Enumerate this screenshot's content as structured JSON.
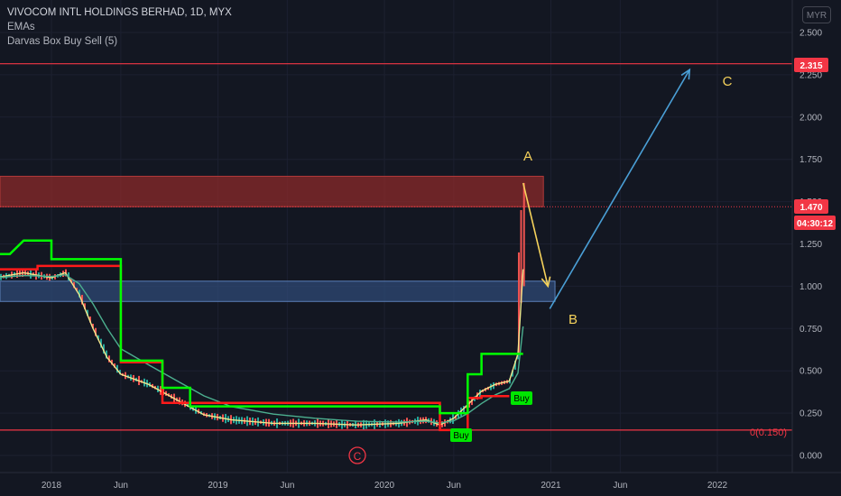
{
  "legend": {
    "title": "VIVOCOM INTL HOLDINGS BERHAD, 1D, MYX",
    "indicator_1": "EMAs",
    "indicator_2": "Darvas Box Buy Sell (5)"
  },
  "currency_badge": "MYR",
  "colors": {
    "background": "#131722",
    "axis_text": "#b2b5be",
    "candle_up": "#26a69a",
    "candle_down": "#ef5350",
    "darvas_top": "#00ff00",
    "darvas_bottom": "#ff1a1a",
    "resistance_line": "#f23645",
    "resistance_zone": "#8b2a2a",
    "support_zone": "#2f4a75",
    "wave_A_B": "#f5d25b",
    "wave_B_C": "#4a9fd6",
    "price_tag": "#f23645",
    "buy_label": "#00e600"
  },
  "price_tags": {
    "target": "2.315",
    "last_price": "1.470",
    "countdown": "04:30:12"
  },
  "annotations": {
    "wave_a": "A",
    "wave_b": "B",
    "wave_c": "C",
    "circle_c": "C",
    "fib_label": "0(0.150)",
    "buy_1": "Buy",
    "buy_2": "Buy"
  },
  "chart_data": {
    "type": "line",
    "title": "VIVOCOM INTL HOLDINGS BERHAD, 1D, MYX",
    "ylim": [
      -0.05,
      2.65
    ],
    "y_ticks": [
      "2.500",
      "2.250",
      "2.000",
      "1.750",
      "1.500",
      "1.250",
      "1.000",
      "0.750",
      "0.500",
      "0.250",
      "0.000"
    ],
    "y_tick_values": [
      2.5,
      2.25,
      2.0,
      1.75,
      1.5,
      1.25,
      1.0,
      0.75,
      0.5,
      0.25,
      0.0
    ],
    "x_range": [
      "2017-06",
      "2022-06"
    ],
    "x_ticks": [
      {
        "label": "2018",
        "date": "2018-01"
      },
      {
        "label": "Jun",
        "date": "2018-06"
      },
      {
        "label": "2019",
        "date": "2019-01"
      },
      {
        "label": "Jun",
        "date": "2019-06"
      },
      {
        "label": "2020",
        "date": "2020-01"
      },
      {
        "label": "Jun",
        "date": "2020-06"
      },
      {
        "label": "2021",
        "date": "2021-01"
      },
      {
        "label": "Jun",
        "date": "2021-06"
      },
      {
        "label": "2022",
        "date": "2022-01"
      }
    ],
    "series": [
      {
        "name": "EMAs",
        "dates": [
          "2017-06",
          "2017-09",
          "2017-11",
          "2018-01",
          "2018-02",
          "2018-03",
          "2018-04",
          "2018-05",
          "2018-06",
          "2018-08",
          "2018-10",
          "2018-12",
          "2019-02",
          "2019-05",
          "2019-08",
          "2019-11",
          "2020-02",
          "2020-04",
          "2020-05",
          "2020-06",
          "2020-07",
          "2020-08",
          "2020-09",
          "2020-10",
          "2020-10-20",
          "2020-11"
        ],
        "values": [
          1.05,
          1.05,
          1.08,
          1.05,
          1.08,
          0.95,
          0.75,
          0.58,
          0.48,
          0.42,
          0.33,
          0.24,
          0.21,
          0.19,
          0.19,
          0.18,
          0.19,
          0.21,
          0.18,
          0.22,
          0.3,
          0.38,
          0.42,
          0.44,
          0.6,
          1.1
        ]
      }
    ],
    "darvas_top": {
      "dates": [
        "2017-06",
        "2017-10",
        "2017-11",
        "2018-01",
        "2018-01",
        "2018-06",
        "2018-06",
        "2018-09",
        "2018-09",
        "2018-11",
        "2018-11",
        "2020-05",
        "2020-05",
        "2020-07",
        "2020-07",
        "2020-08",
        "2020-08",
        "2020-11"
      ],
      "values": [
        1.19,
        1.19,
        1.27,
        1.27,
        1.16,
        1.16,
        0.56,
        0.56,
        0.4,
        0.4,
        0.29,
        0.29,
        0.25,
        0.25,
        0.48,
        0.48,
        0.6,
        0.6
      ]
    },
    "darvas_bottom": {
      "dates": [
        "2017-06",
        "2017-12",
        "2017-12",
        "2018-06",
        "2018-06",
        "2018-09",
        "2018-09",
        "2018-11",
        "2020-05",
        "2020-05",
        "2020-07",
        "2020-07",
        "2020-08",
        "2020-08",
        "2020-10"
      ],
      "values": [
        1.1,
        1.1,
        1.12,
        1.12,
        0.55,
        0.55,
        0.31,
        0.31,
        0.31,
        0.15,
        0.15,
        0.34,
        0.34,
        0.35,
        0.35
      ]
    },
    "zones": [
      {
        "name": "resistance",
        "from_date": "2017-06",
        "to_date": "2020-12-15",
        "low": 1.47,
        "high": 1.65
      },
      {
        "name": "support",
        "from_date": "2017-06",
        "to_date": "2021-01-10",
        "low": 0.91,
        "high": 1.03
      }
    ],
    "horizontal_levels": [
      {
        "label": "2.315",
        "value": 2.315
      },
      {
        "label": "1.470",
        "value": 1.47
      },
      {
        "label": "0(0.150)",
        "value": 0.15
      }
    ],
    "waves": [
      {
        "label": "A",
        "date": "2020-11",
        "value": 1.61
      },
      {
        "label": "B",
        "date": "2020-12-25",
        "value": 1.0
      },
      {
        "label": "C",
        "date": "2021-11",
        "value": 2.28
      }
    ],
    "signals": [
      {
        "label": "Buy",
        "date": "2020-06-15",
        "value": 0.12
      },
      {
        "label": "Buy",
        "date": "2020-10",
        "value": 0.34
      }
    ]
  }
}
